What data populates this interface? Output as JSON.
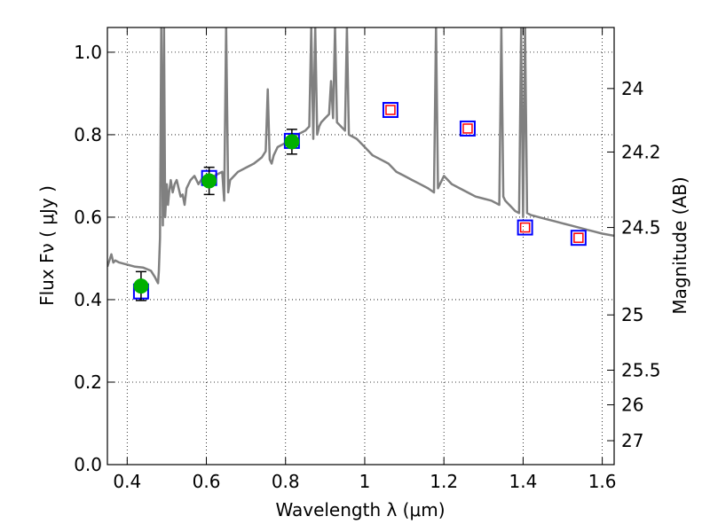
{
  "chart_data": {
    "type": "scatter",
    "xlabel": "Wavelength  λ (μm)",
    "ylabel": "Flux  Fν  ( μJy )",
    "y2label": "Magnitude (AB)",
    "xlim": [
      0.35,
      1.63
    ],
    "ylim": [
      0.0,
      1.06
    ],
    "grid": true,
    "x_ticks": [
      0.4,
      0.6,
      0.8,
      1.0,
      1.2,
      1.4,
      1.6
    ],
    "x_tick_labels": [
      "0.4",
      "0.6",
      "0.8",
      "1",
      "1.2",
      "1.4",
      "1.6"
    ],
    "y_ticks": [
      0.0,
      0.2,
      0.4,
      0.6,
      0.8,
      1.0
    ],
    "y_tick_labels": [
      "0.0",
      "0.2",
      "0.4",
      "0.6",
      "0.8",
      "1.0"
    ],
    "y2_ticks": [
      {
        "label": "24",
        "flux": 0.912
      },
      {
        "label": "24.2",
        "flux": 0.758
      },
      {
        "label": "24.5",
        "flux": 0.575
      },
      {
        "label": "25",
        "flux": 0.363
      },
      {
        "label": "25.5",
        "flux": 0.229
      },
      {
        "label": "26",
        "flux": 0.145
      },
      {
        "label": "27",
        "flux": 0.058
      }
    ],
    "series": [
      {
        "kind": "spectrum",
        "color": "#808080",
        "x": [
          0.35,
          0.36,
          0.365,
          0.37,
          0.38,
          0.4,
          0.42,
          0.44,
          0.46,
          0.47,
          0.475,
          0.478,
          0.48,
          0.483,
          0.486,
          0.49,
          0.493,
          0.496,
          0.5,
          0.503,
          0.506,
          0.51,
          0.515,
          0.52,
          0.525,
          0.53,
          0.535,
          0.54,
          0.545,
          0.55,
          0.56,
          0.57,
          0.58,
          0.59,
          0.6,
          0.62,
          0.64,
          0.645,
          0.65,
          0.655,
          0.66,
          0.68,
          0.7,
          0.72,
          0.74,
          0.75,
          0.755,
          0.76,
          0.765,
          0.77,
          0.78,
          0.8,
          0.81,
          0.83,
          0.85,
          0.86,
          0.865,
          0.87,
          0.875,
          0.88,
          0.885,
          0.89,
          0.9,
          0.91,
          0.915,
          0.92,
          0.925,
          0.93,
          0.94,
          0.95,
          0.955,
          0.96,
          0.98,
          1.0,
          1.02,
          1.04,
          1.06,
          1.08,
          1.1,
          1.12,
          1.14,
          1.16,
          1.175,
          1.18,
          1.185,
          1.19,
          1.2,
          1.22,
          1.24,
          1.26,
          1.28,
          1.3,
          1.32,
          1.34,
          1.345,
          1.35,
          1.355,
          1.36,
          1.37,
          1.38,
          1.39,
          1.395,
          1.4,
          1.405,
          1.41,
          1.42,
          1.44,
          1.46,
          1.48,
          1.5,
          1.52,
          1.54,
          1.56,
          1.58,
          1.6,
          1.63
        ],
        "y": [
          0.48,
          0.51,
          0.49,
          0.495,
          0.49,
          0.485,
          0.48,
          0.478,
          0.47,
          0.455,
          0.445,
          0.44,
          0.47,
          0.55,
          1.06,
          0.58,
          1.06,
          0.6,
          0.68,
          0.63,
          0.66,
          0.69,
          0.66,
          0.68,
          0.69,
          0.67,
          0.65,
          0.655,
          0.63,
          0.67,
          0.69,
          0.7,
          0.68,
          0.695,
          0.69,
          0.7,
          0.71,
          0.64,
          1.06,
          0.66,
          0.69,
          0.71,
          0.72,
          0.73,
          0.745,
          0.76,
          0.91,
          0.74,
          0.73,
          0.75,
          0.77,
          0.78,
          0.79,
          0.8,
          0.81,
          0.82,
          1.06,
          0.79,
          1.06,
          0.8,
          0.82,
          0.83,
          0.84,
          0.85,
          0.93,
          0.84,
          1.06,
          0.83,
          0.82,
          0.81,
          1.06,
          0.8,
          0.79,
          0.77,
          0.75,
          0.74,
          0.73,
          0.71,
          0.7,
          0.69,
          0.68,
          0.67,
          0.66,
          1.06,
          0.67,
          0.68,
          0.7,
          0.68,
          0.67,
          0.66,
          0.65,
          0.645,
          0.64,
          0.63,
          1.06,
          0.65,
          0.64,
          0.635,
          0.625,
          0.615,
          0.61,
          1.06,
          0.6,
          1.06,
          0.61,
          0.605,
          0.6,
          0.595,
          0.59,
          0.585,
          0.58,
          0.575,
          0.57,
          0.565,
          0.56,
          0.555
        ]
      },
      {
        "kind": "observed",
        "marker": "circle",
        "color": "#00b000",
        "x": [
          0.435,
          0.607,
          0.816
        ],
        "y": [
          0.433,
          0.688,
          0.783
        ],
        "yerr": [
          0.035,
          0.033,
          0.03
        ]
      },
      {
        "kind": "model",
        "marker": "square",
        "color": "#0000ff",
        "x": [
          0.435,
          0.607,
          0.816,
          1.065,
          1.26,
          1.405,
          1.54
        ],
        "y": [
          0.42,
          0.695,
          0.785,
          0.86,
          0.815,
          0.575,
          0.55
        ]
      },
      {
        "kind": "model-inner",
        "marker": "square",
        "color": "#ff0000",
        "x": [
          1.065,
          1.26,
          1.405,
          1.54
        ],
        "y": [
          0.86,
          0.815,
          0.575,
          0.55
        ]
      }
    ]
  }
}
